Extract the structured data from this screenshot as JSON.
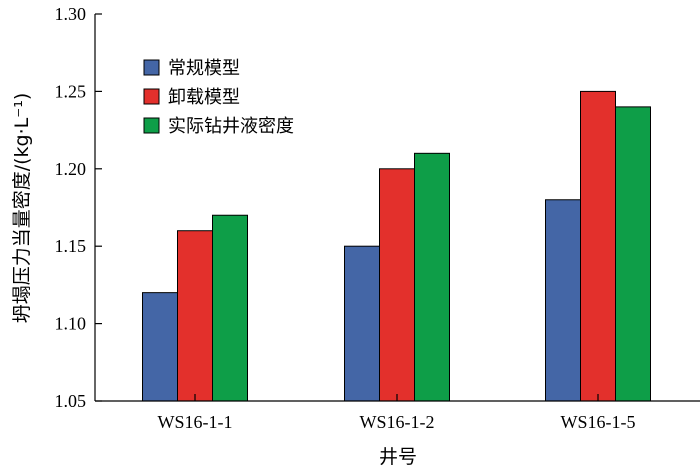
{
  "chart_data": {
    "type": "bar",
    "categories": [
      "WS16-1-1",
      "WS16-1-2",
      "WS16-1-5"
    ],
    "series": [
      {
        "name": "常规模型",
        "color": "#4466a6",
        "values": [
          1.12,
          1.15,
          1.18
        ]
      },
      {
        "name": "卸载模型",
        "color": "#e3302c",
        "values": [
          1.16,
          1.2,
          1.25
        ]
      },
      {
        "name": "实际钻井液密度",
        "color": "#0e9e48",
        "values": [
          1.17,
          1.21,
          1.24
        ]
      }
    ],
    "xlabel": "井号",
    "ylabel": "坍塌压力当量密度/(kg·L⁻¹)",
    "ylim": [
      1.05,
      1.3
    ],
    "yticks": [
      "1.05",
      "1.10",
      "1.15",
      "1.20",
      "1.25",
      "1.30"
    ],
    "legend_position": "top-left",
    "grid": false
  }
}
